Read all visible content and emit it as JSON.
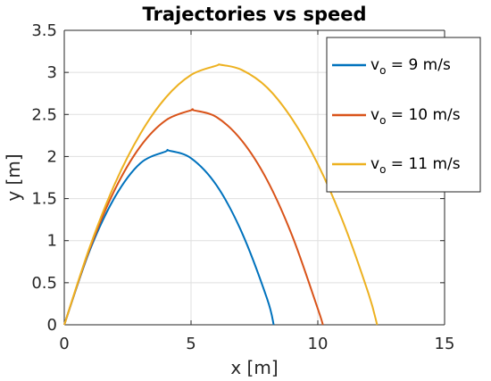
{
  "chart_data": {
    "type": "line",
    "title": "Trajectories vs speed",
    "xlabel": "x [m]",
    "ylabel": "y [m]",
    "xlim": [
      0,
      15
    ],
    "ylim": [
      0,
      3.5
    ],
    "xticks": [
      0,
      5,
      10,
      15
    ],
    "xtick_labels": [
      "0",
      "5",
      "10",
      "15"
    ],
    "yticks": [
      0,
      0.5,
      1,
      1.5,
      2,
      2.5,
      3,
      3.5
    ],
    "ytick_labels": [
      "0",
      "0.5",
      "1",
      "1.5",
      "2",
      "2.5",
      "3",
      "3.5"
    ],
    "grid": true,
    "legend_position": "top-right",
    "series": [
      {
        "name": "v_o = 9 m/s",
        "legend_base": "v",
        "legend_sub": "o",
        "legend_rest": " = 9 m/s",
        "color": "#0072BD",
        "x": [
          0,
          1,
          2,
          3,
          4,
          4.13,
          5,
          6,
          7,
          8,
          8.26
        ],
        "y": [
          0,
          0.88,
          1.52,
          1.92,
          2.06,
          2.07,
          1.98,
          1.66,
          1.1,
          0.31,
          0
        ]
      },
      {
        "name": "v_o = 10 m/s",
        "legend_base": "v",
        "legend_sub": "o",
        "legend_rest": " = 10 m/s",
        "color": "#D95319",
        "x": [
          0,
          1,
          2,
          3,
          4,
          5,
          5.1,
          6,
          7,
          8,
          9,
          10,
          10.2
        ],
        "y": [
          0,
          0.9,
          1.61,
          2.12,
          2.43,
          2.55,
          2.55,
          2.47,
          2.19,
          1.72,
          1.05,
          0.19,
          0
        ]
      },
      {
        "name": "v_o = 11 m/s",
        "legend_base": "v",
        "legend_sub": "o",
        "legend_rest": " = 11 m/s",
        "color": "#EDB120",
        "x": [
          0,
          1,
          2,
          3,
          4,
          5,
          6,
          6.17,
          7,
          8,
          9,
          10,
          11,
          12,
          12.34
        ],
        "y": [
          0,
          0.92,
          1.68,
          2.27,
          2.7,
          2.97,
          3.08,
          3.09,
          3.03,
          2.82,
          2.44,
          1.91,
          1.22,
          0.37,
          0
        ]
      }
    ]
  }
}
